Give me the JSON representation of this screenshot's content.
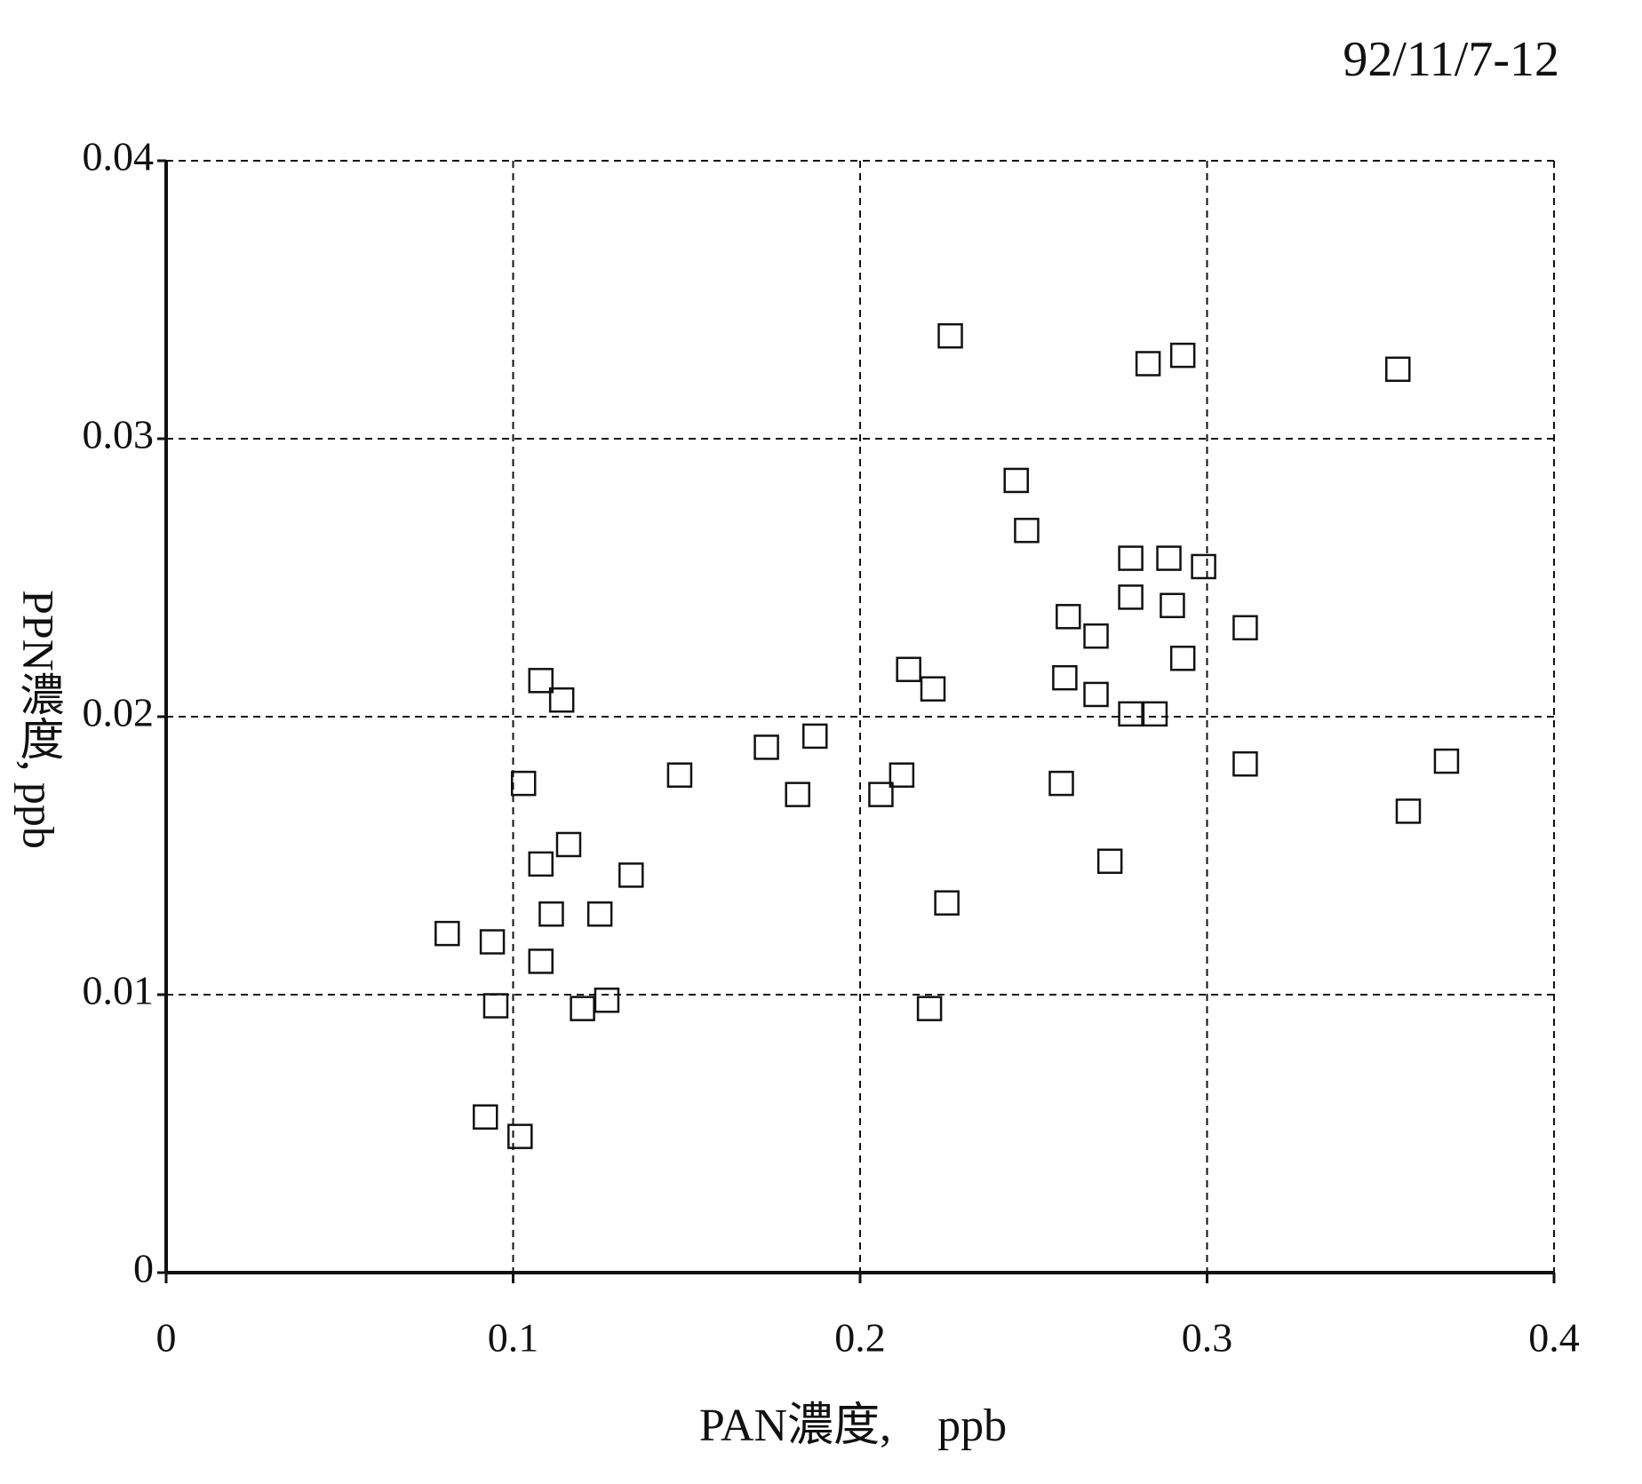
{
  "chart_data": {
    "type": "scatter",
    "annotation": "92/11/7-12",
    "x_label": "PAN濃度,　ppb",
    "y_label": "PPN濃度, ppb",
    "xlim": [
      0,
      0.4
    ],
    "xticks": [
      0,
      0.1,
      0.2,
      0.3,
      0.4
    ],
    "ylim": [
      0,
      0.04
    ],
    "yticks": [
      0,
      0.01,
      0.02,
      0.03,
      0.04
    ],
    "grid": true,
    "marker": "square",
    "color": "#111111",
    "x": [
      0.226,
      0.283,
      0.293,
      0.355,
      0.245,
      0.248,
      0.278,
      0.289,
      0.299,
      0.278,
      0.29,
      0.26,
      0.311,
      0.268,
      0.293,
      0.214,
      0.221,
      0.259,
      0.268,
      0.278,
      0.285,
      0.108,
      0.114,
      0.187,
      0.173,
      0.148,
      0.212,
      0.311,
      0.369,
      0.103,
      0.182,
      0.206,
      0.258,
      0.358,
      0.116,
      0.108,
      0.272,
      0.134,
      0.225,
      0.111,
      0.125,
      0.081,
      0.094,
      0.108,
      0.095,
      0.12,
      0.127,
      0.22,
      0.092,
      0.102
    ],
    "y": [
      0.0337,
      0.0327,
      0.033,
      0.0325,
      0.0285,
      0.0267,
      0.0257,
      0.0257,
      0.0254,
      0.0243,
      0.024,
      0.0236,
      0.0232,
      0.0229,
      0.0221,
      0.0217,
      0.021,
      0.0214,
      0.0208,
      0.0201,
      0.0201,
      0.0213,
      0.0206,
      0.0193,
      0.0189,
      0.0179,
      0.0179,
      0.0183,
      0.0184,
      0.0176,
      0.0172,
      0.0172,
      0.0176,
      0.0166,
      0.0154,
      0.0147,
      0.0148,
      0.0143,
      0.0133,
      0.0129,
      0.0129,
      0.0122,
      0.0119,
      0.0112,
      0.0096,
      0.0095,
      0.0098,
      0.0095,
      0.0056,
      0.0049
    ]
  }
}
